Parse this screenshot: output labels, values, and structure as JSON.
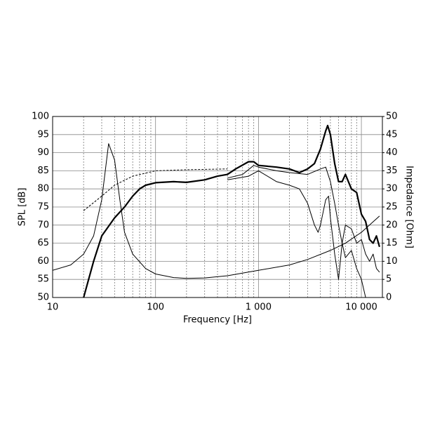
{
  "chart_data": {
    "type": "line",
    "log_x": true,
    "grid": true,
    "minor_grid": true,
    "x_label": "Frequency [Hz]",
    "y_label": "SPL [dB]",
    "y2_label": "Impedance [Ohm]",
    "xlim": [
      10,
      16000
    ],
    "xticks": [
      10,
      100,
      {
        "value": 1000,
        "label": "1 000"
      },
      {
        "value": 10000,
        "label": "10 000"
      }
    ],
    "ylim": [
      50,
      100
    ],
    "yticks": [
      50,
      55,
      60,
      65,
      70,
      75,
      80,
      85,
      90,
      95,
      100
    ],
    "y2lim": [
      0,
      50
    ],
    "y2ticks": [
      0,
      5,
      10,
      15,
      20,
      25,
      30,
      35,
      40,
      45,
      50
    ],
    "series": [
      {
        "color": "#000000",
        "width": 2.2,
        "x": [
          20,
          25,
          30,
          40,
          50,
          60,
          70,
          80,
          100,
          150,
          200,
          300,
          400,
          500,
          600,
          800,
          900,
          1000,
          1500,
          2000,
          2500,
          3000,
          3500,
          4000,
          4500,
          4700,
          5000,
          5500,
          6000,
          6500,
          7000,
          8000,
          9000,
          10000,
          11000,
          12000,
          13000,
          14000,
          15000
        ],
        "values": [
          50,
          60,
          67,
          72,
          75,
          78,
          80,
          81,
          81.7,
          82,
          81.8,
          82.5,
          83.5,
          84,
          85.5,
          87.5,
          87.5,
          86.5,
          86,
          85.5,
          84.5,
          85.5,
          87,
          91,
          96,
          97.5,
          95,
          87,
          82,
          82,
          84,
          80,
          79,
          73,
          71,
          66,
          65,
          67,
          64
        ]
      },
      {
        "color": "#000000",
        "width": 1,
        "x": [
          500,
          700,
          900,
          1000,
          1500,
          2000,
          3000,
          4000,
          4500,
          5000,
          5500,
          6000,
          6500,
          7000,
          8000,
          9000,
          10000,
          11000,
          12000,
          13000,
          14000,
          15000
        ],
        "values": [
          83,
          84,
          86.5,
          86,
          85,
          84.5,
          84,
          85.5,
          86,
          82,
          76,
          70,
          65,
          70,
          69,
          65,
          66,
          62,
          60,
          62,
          58,
          57
        ]
      },
      {
        "color": "#000000",
        "width": 1,
        "x": [
          500,
          800,
          1000,
          1500,
          2000,
          2500,
          3000,
          3500,
          3800,
          4000,
          4500,
          4800,
          5000,
          5500,
          6000,
          6500,
          7000,
          8000,
          9000,
          10000,
          11000
        ],
        "values": [
          82.5,
          83.5,
          85,
          82,
          81,
          80,
          76,
          70,
          68,
          70,
          77,
          78,
          72,
          62,
          55,
          65,
          61,
          63,
          58,
          55,
          50
        ]
      },
      {
        "color": "#000000",
        "width": 1,
        "dashed": true,
        "x": [
          20,
          30,
          40,
          60,
          100,
          200,
          500
        ],
        "values": [
          74,
          78,
          81,
          83.5,
          85,
          85.3,
          85.5
        ]
      },
      {
        "color": "#000000",
        "width": 1,
        "axis": "y2",
        "x": [
          10,
          15,
          20,
          25,
          30,
          35,
          40,
          45,
          50,
          60,
          80,
          100,
          150,
          200,
          300,
          500,
          1000,
          2000,
          3000,
          5000,
          7000,
          10000,
          15000
        ],
        "values": [
          7.5,
          9,
          12,
          17,
          27,
          42.5,
          38,
          27,
          18,
          12,
          8,
          6.5,
          5.5,
          5.3,
          5.4,
          6,
          7.5,
          9,
          10.5,
          13,
          15,
          18,
          22.5
        ]
      }
    ]
  }
}
